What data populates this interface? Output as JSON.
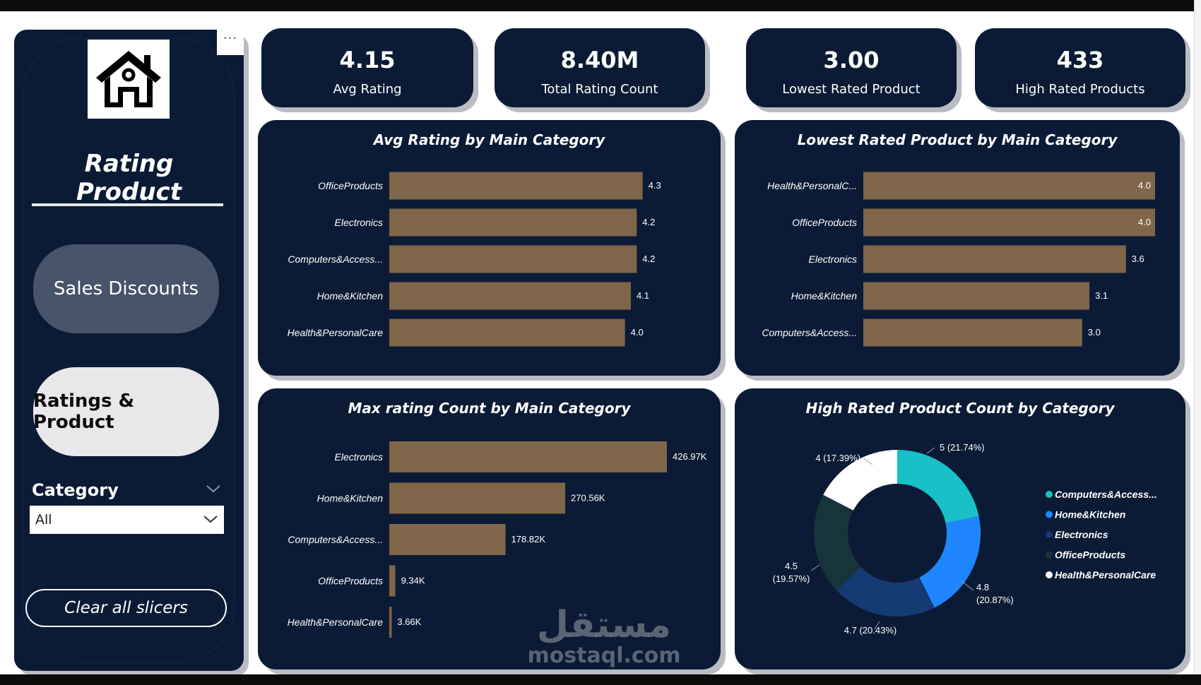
{
  "sidebar": {
    "more_label": "···",
    "title": "Rating Product",
    "nav_sales": "Sales Discounts",
    "nav_ratings": "Ratings & Product",
    "category_label": "Category",
    "category_value": "All",
    "clear_label": "Clear all slicers"
  },
  "kpis": [
    {
      "value": "4.15",
      "label": "Avg Rating"
    },
    {
      "value": "8.40M",
      "label": "Total Rating Count"
    },
    {
      "value": "3.00",
      "label": "Lowest Rated Product"
    },
    {
      "value": "433",
      "label": "High Rated Products"
    }
  ],
  "watermark": {
    "arabic": "مستقل",
    "latin": "mostaql.com"
  },
  "colors": {
    "navy": "#0b1b35",
    "bar": "#7f654a",
    "teal": "#17c1c6",
    "blue": "#1f86ff",
    "darkblue": "#163a74",
    "darkgreen": "#17343a",
    "white": "#ffffff"
  },
  "chart_data": [
    {
      "type": "bar",
      "title": "Avg Rating by Main Category",
      "categories": [
        "OfficeProducts",
        "Electronics",
        "Computers&Access...",
        "Home&Kitchen",
        "Health&PersonalCare"
      ],
      "values": [
        4.3,
        4.2,
        4.2,
        4.1,
        4.0
      ],
      "labels": [
        "4.3",
        "4.2",
        "4.2",
        "4.1",
        "4.0"
      ],
      "xlim": [
        0,
        4.7
      ]
    },
    {
      "type": "bar",
      "title": "Lowest Rated Product by Main Category",
      "categories": [
        "Health&PersonalC...",
        "OfficeProducts",
        "Electronics",
        "Home&Kitchen",
        "Computers&Access..."
      ],
      "values": [
        4.0,
        4.0,
        3.6,
        3.1,
        3.0
      ],
      "labels": [
        "4.0",
        "4.0",
        "3.6",
        "3.1",
        "3.0"
      ],
      "xlim": [
        0,
        4.0
      ],
      "labels_inside_first": 2
    },
    {
      "type": "bar",
      "title": "Max rating Count by Main Category",
      "categories": [
        "Electronics",
        "Home&Kitchen",
        "Computers&Access...",
        "OfficeProducts",
        "Health&PersonalCare"
      ],
      "values": [
        426970,
        270560,
        178820,
        9340,
        3660
      ],
      "labels": [
        "426.97K",
        "270.56K",
        "178.82K",
        "9.34K",
        "3.66K"
      ],
      "xlim": [
        0,
        426970
      ]
    },
    {
      "type": "pie",
      "title": "High Rated Product Count by Category",
      "slices": [
        {
          "name": "Computers&Access...",
          "value": 5,
          "pct": 21.74,
          "label": "5 (21.74%)",
          "color": "#17c1c6"
        },
        {
          "name": "Home&Kitchen",
          "value": 4.8,
          "pct": 20.87,
          "label": "4.8 (20.87%)",
          "color": "#1f86ff"
        },
        {
          "name": "Electronics",
          "value": 4.7,
          "pct": 20.43,
          "label": "4.7 (20.43%)",
          "color": "#163a74"
        },
        {
          "name": "OfficeProducts",
          "value": 4.5,
          "pct": 19.57,
          "label": "4.5 (19.57%)",
          "color": "#17343a"
        },
        {
          "name": "Health&PersonalCare",
          "value": 4,
          "pct": 17.39,
          "label": "4 (17.39%)",
          "color": "#ffffff"
        }
      ],
      "legend": [
        "Computers&Access...",
        "Home&Kitchen",
        "Electronics",
        "OfficeProducts",
        "Health&PersonalCare"
      ]
    }
  ]
}
